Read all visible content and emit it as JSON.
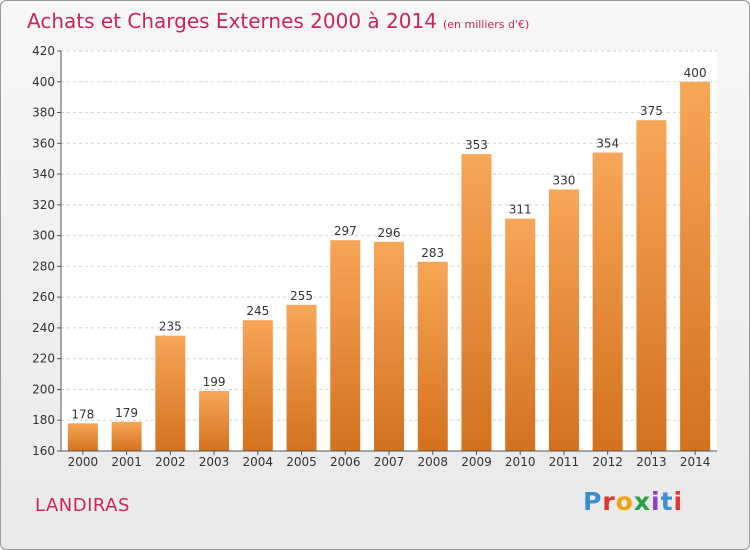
{
  "header": {
    "title": "Achats et Charges Externes 2000 à 2014",
    "subtitle": "(en milliers d'€)"
  },
  "footer": {
    "city": "LANDIRAS",
    "logo_letters": [
      "P",
      "r",
      "o",
      "x",
      "i",
      "t",
      "i"
    ]
  },
  "colors": {
    "bar_light": "#f7a657",
    "bar_dark": "#d4711e",
    "title": "#c8245e",
    "grid": "#d4d4d4"
  },
  "chart_data": {
    "type": "bar",
    "title": "Achats et Charges Externes 2000 à 2014",
    "categories": [
      "2000",
      "2001",
      "2002",
      "2003",
      "2004",
      "2005",
      "2006",
      "2007",
      "2008",
      "2009",
      "2010",
      "2011",
      "2012",
      "2013",
      "2014"
    ],
    "values": [
      178,
      179,
      235,
      199,
      245,
      255,
      297,
      296,
      283,
      353,
      311,
      330,
      354,
      375,
      400
    ],
    "ylim": [
      160,
      420
    ],
    "yticks": [
      160,
      180,
      200,
      220,
      240,
      260,
      280,
      300,
      320,
      340,
      360,
      380,
      400,
      420
    ],
    "grid": true,
    "xlabel": "",
    "ylabel": ""
  }
}
